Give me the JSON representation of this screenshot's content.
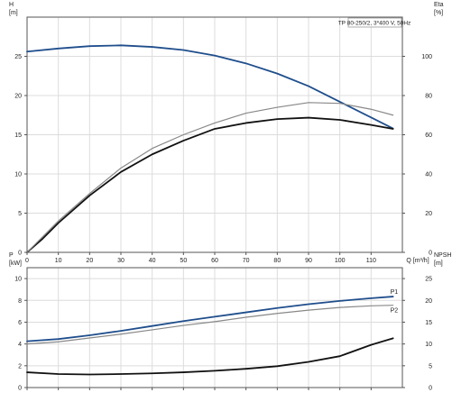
{
  "chart_data": [
    {
      "type": "line",
      "title": "TP 80-250/2, 3*400 V, 50Hz",
      "xlabel": "Q [m³/h]",
      "y_left_label": [
        "H",
        "[m]"
      ],
      "y_right_label": [
        "Eta",
        "[%]"
      ],
      "xlim": [
        0,
        120
      ],
      "x_ticks": [
        0,
        10,
        20,
        30,
        40,
        50,
        60,
        70,
        80,
        90,
        100,
        110
      ],
      "ylim_left": [
        0,
        30
      ],
      "y_left_ticks": [
        0,
        5,
        10,
        15,
        20,
        25
      ],
      "ylim_right": [
        0,
        120
      ],
      "y_right_ticks": [
        0,
        20,
        40,
        60,
        80,
        100
      ],
      "grid": true,
      "series": [
        {
          "axis": "left",
          "color": "#1f4e8c",
          "x": [
            0,
            10,
            20,
            30,
            40,
            50,
            60,
            70,
            80,
            90,
            100,
            110,
            117
          ],
          "y": [
            25.6,
            26.0,
            26.3,
            26.4,
            26.2,
            25.8,
            25.1,
            24.1,
            22.8,
            21.2,
            19.2,
            17.2,
            15.8
          ]
        },
        {
          "axis": "right",
          "color": "#111111",
          "x": [
            0,
            5,
            10,
            20,
            30,
            40,
            50,
            60,
            70,
            80,
            90,
            100,
            110,
            117
          ],
          "y": [
            0,
            7,
            15,
            29,
            41,
            50,
            57,
            63,
            66,
            68,
            68.7,
            67.6,
            65,
            63
          ]
        },
        {
          "axis": "right",
          "color": "#888888",
          "x": [
            0,
            10,
            20,
            30,
            40,
            50,
            60,
            70,
            80,
            90,
            100,
            110,
            117
          ],
          "y": [
            0,
            16,
            30,
            43,
            53,
            60,
            66,
            71,
            74,
            76.4,
            76,
            73,
            70
          ]
        }
      ]
    },
    {
      "type": "line",
      "y_left_label": [
        "P",
        "[kW]"
      ],
      "y_right_label": [
        "NPSH",
        "[m]"
      ],
      "xlim": [
        0,
        120
      ],
      "x_ticks": [
        0,
        10,
        20,
        30,
        40,
        50,
        60,
        70,
        80,
        90,
        100,
        110
      ],
      "ylim_left": [
        0,
        11
      ],
      "y_left_ticks": [
        0,
        2,
        4,
        6,
        8,
        10
      ],
      "ylim_right": [
        0,
        27.5
      ],
      "y_right_ticks": [
        0,
        5,
        10,
        15,
        20,
        25
      ],
      "grid": true,
      "series": [
        {
          "name": "P1",
          "axis": "left",
          "color": "#1f4e8c",
          "x": [
            0,
            10,
            20,
            30,
            40,
            50,
            60,
            70,
            80,
            90,
            100,
            110,
            117
          ],
          "y": [
            4.25,
            4.45,
            4.8,
            5.2,
            5.65,
            6.1,
            6.5,
            6.9,
            7.3,
            7.65,
            7.95,
            8.2,
            8.35
          ]
        },
        {
          "name": "P2",
          "axis": "left",
          "color": "#888888",
          "x": [
            0,
            10,
            20,
            30,
            40,
            50,
            60,
            70,
            80,
            90,
            100,
            110,
            117
          ],
          "y": [
            4.0,
            4.2,
            4.55,
            4.9,
            5.3,
            5.7,
            6.05,
            6.45,
            6.8,
            7.1,
            7.35,
            7.5,
            7.55
          ]
        },
        {
          "axis": "right",
          "color": "#111111",
          "x": [
            0,
            10,
            20,
            30,
            40,
            50,
            60,
            70,
            80,
            90,
            100,
            110,
            117
          ],
          "y": [
            3.5,
            3.1,
            3.0,
            3.1,
            3.25,
            3.5,
            3.85,
            4.3,
            4.9,
            5.9,
            7.2,
            9.8,
            11.3
          ]
        }
      ]
    }
  ]
}
